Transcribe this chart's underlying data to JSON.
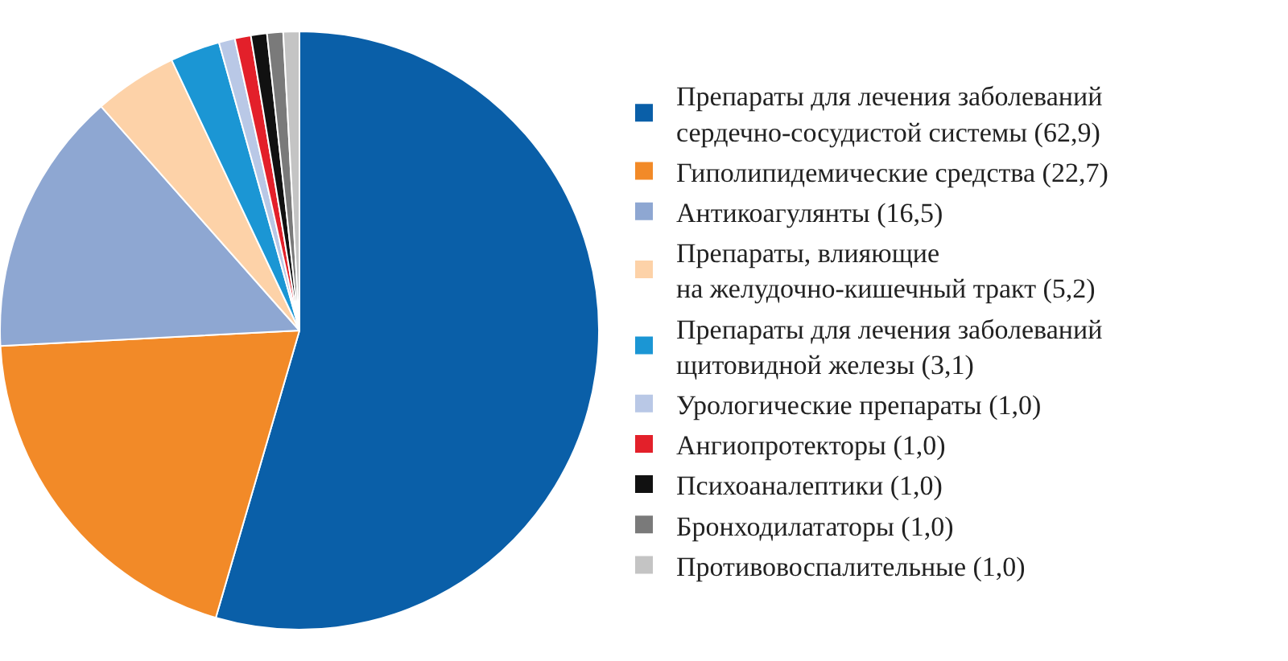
{
  "chart_data": {
    "type": "pie",
    "categories": [
      "Препараты для лечения заболеваний\nсердечно-сосудистой системы (62,9)",
      "Гиполипидемические средства (22,7)",
      "Антикоагулянты (16,5)",
      "Препараты, влияющие\nна желудочно-кишечный тракт (5,2)",
      "Препараты для лечения заболеваний\nщитовидной железы (3,1)",
      "Урологические препараты (1,0)",
      "Ангиопротекторы (1,0)",
      "Психоаналептики (1,0)",
      "Бронходилататоры (1,0)",
      "Противовоспалительные (1,0)"
    ],
    "values": [
      62.9,
      22.7,
      16.5,
      5.2,
      3.1,
      1.0,
      1.0,
      1.0,
      1.0,
      1.0
    ],
    "colors": [
      "#0a5fa8",
      "#f28a28",
      "#8ea7d2",
      "#fdd2a8",
      "#1b96d4",
      "#b9c8e6",
      "#e3202a",
      "#111111",
      "#7a7a7a",
      "#c4c4c4"
    ],
    "legend": "right"
  }
}
